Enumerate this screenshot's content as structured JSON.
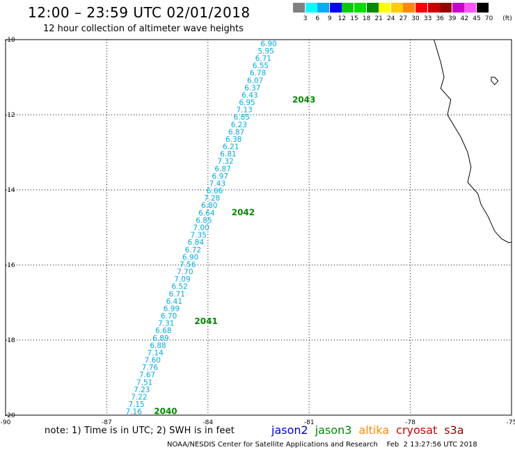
{
  "header": {
    "title": "12:00 – 23:59 UTC 02/01/2018",
    "subtitle": "12 hour collection of altimeter wave heights"
  },
  "colorbar": {
    "unit_label": "(ft)",
    "labels": [
      "3",
      "6",
      "9",
      "12",
      "15",
      "18",
      "21",
      "24",
      "27",
      "30",
      "33",
      "36",
      "39",
      "42",
      "45",
      "70"
    ],
    "colors": [
      "#808080",
      "#00ffff",
      "#00aaff",
      "#0000ff",
      "#00cc00",
      "#00dd00",
      "#008800",
      "#ffff00",
      "#ffcc00",
      "#ff8800",
      "#ff0000",
      "#cc0000",
      "#990000",
      "#cc00cc",
      "#ff55ff",
      "#000000"
    ]
  },
  "footer": {
    "note": "note: 1) Time is in UTC; 2) SWH is in feet",
    "credit": "NOAA/NESDIS Center for Satellite Applications and Research    Feb  2 13:27:56 UTC 2018",
    "legend": [
      {
        "name": "jason2",
        "color": "#0000cc"
      },
      {
        "name": "jason3",
        "color": "#008800"
      },
      {
        "name": "altika",
        "color": "#ff8800"
      },
      {
        "name": "cryosat",
        "color": "#cc0000"
      },
      {
        "name": "s3a",
        "color": "#880000"
      }
    ]
  },
  "chart_data": {
    "type": "scatter",
    "xlim": [
      -90,
      -75
    ],
    "ylim": [
      -20,
      -10
    ],
    "x_ticks": [
      "-90",
      "-87",
      "-84",
      "-81",
      "-78",
      "-75"
    ],
    "y_ticks": [
      "-10",
      "-12",
      "-14",
      "-16",
      "-18",
      "-20"
    ],
    "grid": true,
    "value_color": "#00aadd",
    "time_color": "#008800",
    "swh_values": [
      "6.90",
      "5.95",
      "6.71",
      "6.55",
      "6.78",
      "6.07",
      "6.37",
      "6.43",
      "6.95",
      "7.13",
      "6.85",
      "6.23",
      "6.87",
      "6.38",
      "6.21",
      "6.81",
      "7.32",
      "6.87",
      "6.97",
      "7.43",
      "6.66",
      "7.28",
      "6.80",
      "6.64",
      "6.85",
      "7.00",
      "7.35",
      "6.84",
      "6.72",
      "6.90",
      "7.56",
      "7.70",
      "7.09",
      "6.52",
      "6.71",
      "6.41",
      "6.99",
      "6.70",
      "7.31",
      "6.68",
      "6.89",
      "6.88",
      "7.14",
      "7.60",
      "7.76",
      "7.67",
      "7.51",
      "7.23",
      "7.22",
      "7.15",
      "7.16"
    ],
    "track_start": {
      "lon": -82.2,
      "lat": -10.1
    },
    "track_end": {
      "lon": -86.2,
      "lat": -19.9
    },
    "time_labels": [
      {
        "text": "2043",
        "lon": -81.5,
        "lat": -11.6
      },
      {
        "text": "2042",
        "lon": -83.3,
        "lat": -14.6
      },
      {
        "text": "2041",
        "lon": -84.4,
        "lat": -17.5
      },
      {
        "text": "2040",
        "lon": -85.6,
        "lat": -19.9
      }
    ],
    "coastline": [
      [
        -77.3,
        -10.0
      ],
      [
        -77.2,
        -10.3
      ],
      [
        -77.1,
        -10.6
      ],
      [
        -77.0,
        -11.0
      ],
      [
        -77.1,
        -11.3
      ],
      [
        -76.8,
        -11.6
      ],
      [
        -76.9,
        -12.0
      ],
      [
        -76.7,
        -12.3
      ],
      [
        -76.5,
        -12.6
      ],
      [
        -76.3,
        -13.0
      ],
      [
        -76.2,
        -13.4
      ],
      [
        -76.3,
        -13.8
      ],
      [
        -76.0,
        -14.1
      ],
      [
        -75.9,
        -14.4
      ],
      [
        -75.7,
        -14.7
      ],
      [
        -75.5,
        -15.1
      ],
      [
        -75.3,
        -15.3
      ],
      [
        -75.1,
        -15.4
      ],
      [
        -75.0,
        -15.4
      ]
    ],
    "island": [
      [
        -75.6,
        -11.0
      ],
      [
        -75.5,
        -11.0
      ],
      [
        -75.4,
        -11.1
      ],
      [
        -75.5,
        -11.2
      ],
      [
        -75.6,
        -11.1
      ]
    ]
  }
}
